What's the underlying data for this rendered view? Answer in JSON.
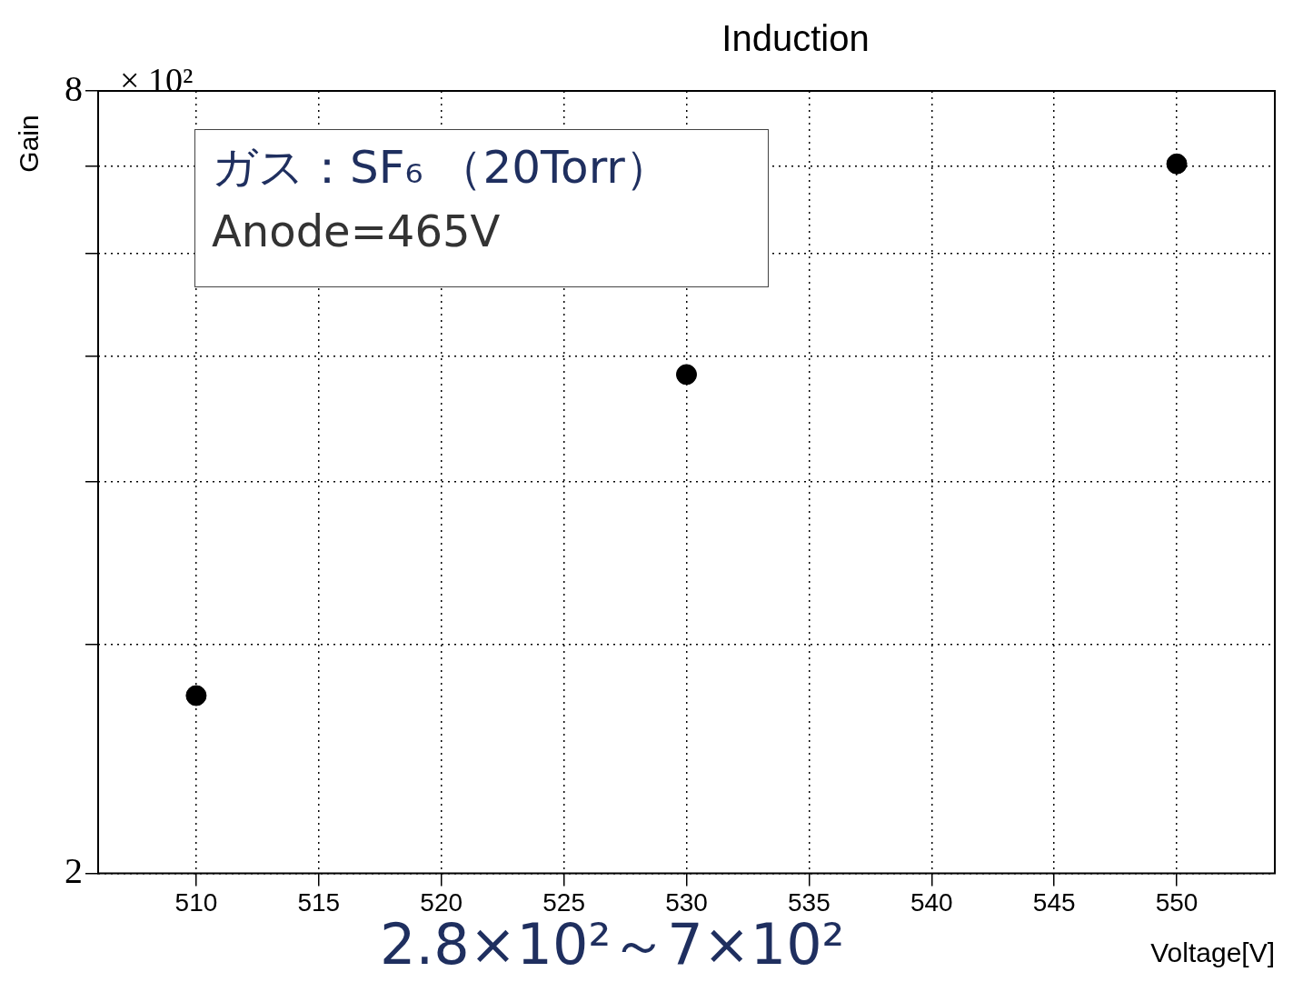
{
  "chart_data": {
    "type": "scatter",
    "title": "Induction",
    "xlabel": "Voltage[V]",
    "ylabel": "Gain",
    "x": [
      510,
      530,
      550
    ],
    "series": [
      {
        "color": "#000000",
        "values": [
          2.74,
          4.84,
          7.03
        ]
      }
    ],
    "xlim": [
      506,
      554
    ],
    "xticks": [
      510,
      515,
      520,
      525,
      530,
      535,
      540,
      545,
      550
    ],
    "ylim": [
      2,
      8
    ],
    "yticks": [
      2,
      {
        "value": 3,
        "label": null
      },
      {
        "value": 4,
        "label": null
      },
      {
        "value": 5,
        "label": null
      },
      {
        "value": 6,
        "label": null
      },
      {
        "value": 7,
        "label": null
      },
      8
    ],
    "log": "y",
    "grid": true,
    "line_style": "dotted",
    "marker": "circle",
    "legend": false,
    "annotations": [
      "× 10²",
      "ガス：SF₆ （20Torr）",
      "Anode=465V",
      "2.8×10²～7×10²"
    ]
  }
}
